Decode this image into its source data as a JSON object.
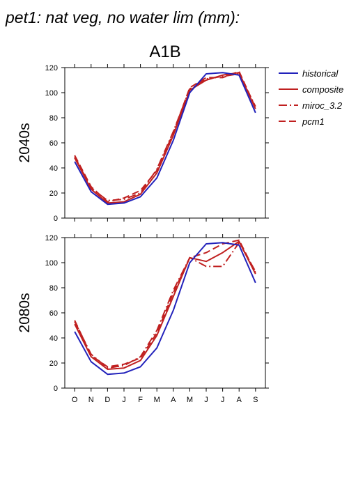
{
  "title": "pet1: nat veg, no water lim (mm):",
  "subtitle": "A1B",
  "legend": [
    "historical",
    "composite",
    "miroc_3.2",
    "pcm1"
  ],
  "colors": {
    "historical": "#2222bb",
    "composite": "#c02020",
    "miroc_3.2": "#c02020",
    "pcm1": "#c02020"
  },
  "line_styles": {
    "historical": "solid",
    "composite": "solid",
    "miroc_3.2": "dash-dot",
    "pcm1": "dashed"
  },
  "chart_data": [
    {
      "type": "line",
      "panel_label": "2040s",
      "categories": [
        "O",
        "N",
        "D",
        "J",
        "F",
        "M",
        "A",
        "M",
        "J",
        "J",
        "A",
        "S"
      ],
      "ylim": [
        0,
        120
      ],
      "yticks": [
        0,
        20,
        40,
        60,
        80,
        100,
        120
      ],
      "series": [
        {
          "name": "historical",
          "values": [
            45,
            21,
            11,
            12,
            17,
            32,
            62,
            100,
            115,
            116,
            114,
            84
          ]
        },
        {
          "name": "composite",
          "values": [
            48,
            23,
            12,
            13,
            19,
            36,
            66,
            102,
            110,
            114,
            116,
            87
          ]
        },
        {
          "name": "miroc_3.2",
          "values": [
            49,
            24,
            14,
            15,
            20,
            39,
            69,
            103,
            111,
            113,
            115,
            89
          ]
        },
        {
          "name": "pcm1",
          "values": [
            50,
            25,
            13,
            16,
            22,
            38,
            68,
            104,
            112,
            112,
            117,
            88
          ]
        }
      ]
    },
    {
      "type": "line",
      "panel_label": "2080s",
      "categories": [
        "O",
        "N",
        "D",
        "J",
        "F",
        "M",
        "A",
        "M",
        "J",
        "J",
        "A",
        "S"
      ],
      "ylim": [
        0,
        120
      ],
      "yticks": [
        0,
        20,
        40,
        60,
        80,
        100,
        120
      ],
      "series": [
        {
          "name": "historical",
          "values": [
            45,
            21,
            11,
            12,
            17,
            32,
            62,
            100,
            115,
            116,
            114,
            84
          ]
        },
        {
          "name": "composite",
          "values": [
            51,
            25,
            15,
            16,
            22,
            42,
            73,
            104,
            101,
            108,
            117,
            91
          ]
        },
        {
          "name": "miroc_3.2",
          "values": [
            53,
            27,
            16,
            18,
            25,
            46,
            78,
            104,
            97,
            97,
            116,
            93
          ]
        },
        {
          "name": "pcm1",
          "values": [
            54,
            26,
            17,
            19,
            24,
            44,
            76,
            104,
            108,
            115,
            118,
            92
          ]
        }
      ]
    }
  ]
}
